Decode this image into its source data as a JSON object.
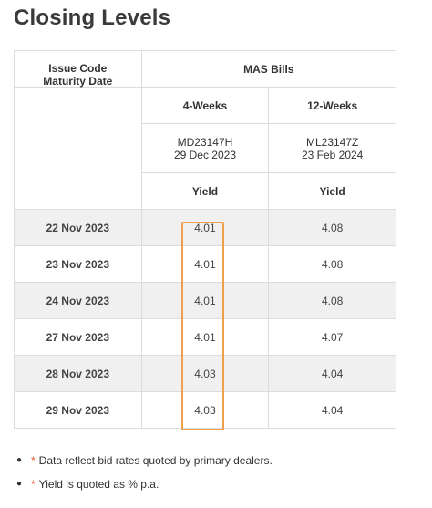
{
  "title": "Closing Levels",
  "table": {
    "group_header": "MAS Bills",
    "row_header_lines": [
      "Issue Code",
      "Maturity Date"
    ],
    "columns": [
      {
        "tenor": "4-Weeks",
        "issue_code": "MD23147H",
        "maturity_date": "29 Dec 2023",
        "measure": "Yield"
      },
      {
        "tenor": "12-Weeks",
        "issue_code": "ML23147Z",
        "maturity_date": "23 Feb 2024",
        "measure": "Yield"
      }
    ],
    "rows": [
      {
        "date": "22 Nov 2023",
        "values": [
          "4.01",
          "4.08"
        ]
      },
      {
        "date": "23 Nov 2023",
        "values": [
          "4.01",
          "4.08"
        ]
      },
      {
        "date": "24 Nov 2023",
        "values": [
          "4.01",
          "4.08"
        ]
      },
      {
        "date": "27 Nov 2023",
        "values": [
          "4.01",
          "4.07"
        ]
      },
      {
        "date": "28 Nov 2023",
        "values": [
          "4.03",
          "4.04"
        ]
      },
      {
        "date": "29 Nov 2023",
        "values": [
          "4.03",
          "4.04"
        ]
      }
    ]
  },
  "notes": [
    {
      "marker": "*",
      "text": "Data reflect bid rates quoted by primary dealers."
    },
    {
      "marker": "*",
      "text": "Yield is quoted as % p.a."
    }
  ],
  "colors": {
    "highlight_border": "#f0a04b",
    "shaded_row": "#f0f0f0",
    "note_marker": "#e05a2b"
  }
}
